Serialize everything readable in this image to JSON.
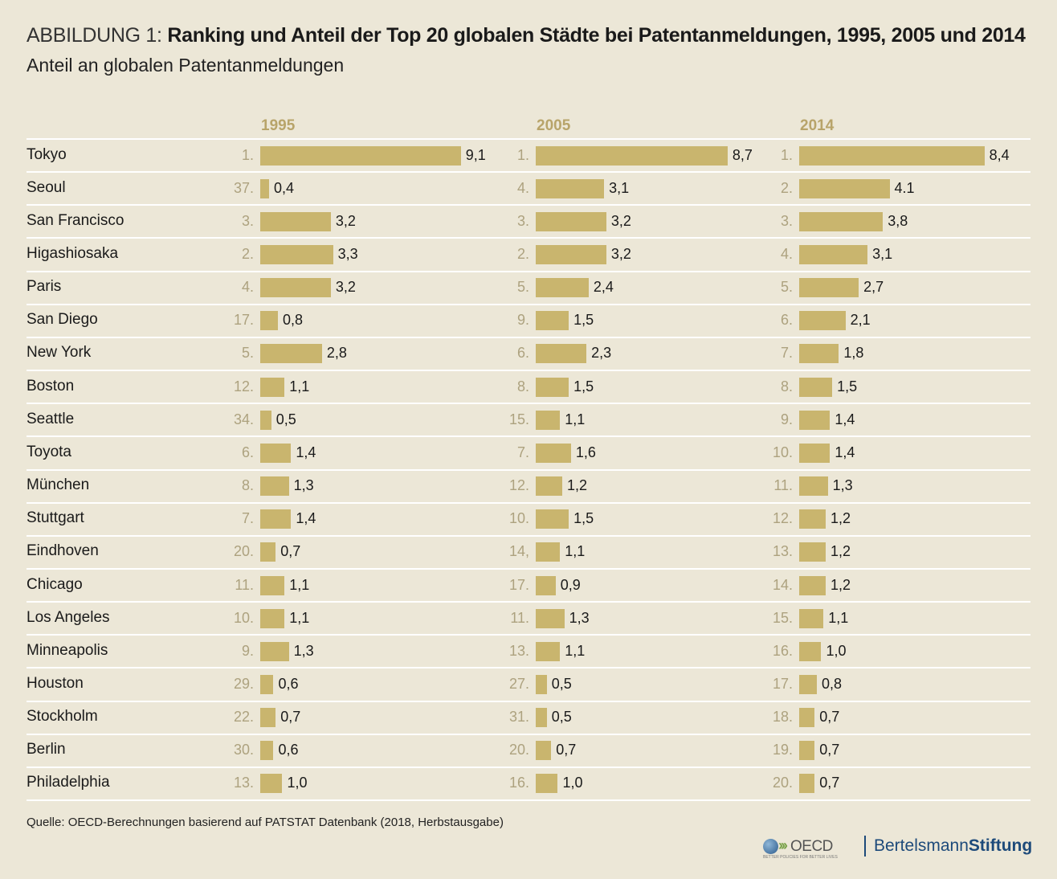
{
  "title_prefix": "ABBILDUNG 1:",
  "title": "Ranking und Anteil der Top 20 globalen Städte bei Patentanmeldungen, 1995, 2005 und 2014",
  "subtitle": "Anteil an globalen Patentanmeldungen",
  "source": "Quelle: OECD-Berechnungen basierend auf PATSTAT Datenbank (2018, Herbstausgabe)",
  "logos": {
    "oecd": "OECD",
    "oecd_tagline": "BETTER POLICIES FOR BETTER LIVES",
    "bertelsmann_a": "Bertelsmann",
    "bertelsmann_b": "Stiftung"
  },
  "colors": {
    "background": "#ece7d7",
    "bar": "#c9b56e",
    "year_header": "#b8a46a",
    "rank": "#ada27f"
  },
  "chart_data": {
    "type": "bar",
    "orientation": "horizontal",
    "categories": [
      "Tokyo",
      "Seoul",
      "San Francisco",
      "Higashiosaka",
      "Paris",
      "San Diego",
      "New York",
      "Boston",
      "Seattle",
      "Toyota",
      "München",
      "Stuttgart",
      "Eindhoven",
      "Chicago",
      "Los Angeles",
      "Minneapolis",
      "Houston",
      "Stockholm",
      "Berlin",
      "Philadelphia"
    ],
    "series": [
      {
        "name": "1995",
        "ranks": [
          "1.",
          "37.",
          "3.",
          "2.",
          "4.",
          "17.",
          "5.",
          "12.",
          "34.",
          "6.",
          "8.",
          "7.",
          "20.",
          "11.",
          "10.",
          "9.",
          "29.",
          "22.",
          "30.",
          "13."
        ],
        "values": [
          9.1,
          0.4,
          3.2,
          3.3,
          3.2,
          0.8,
          2.8,
          1.1,
          0.5,
          1.4,
          1.3,
          1.4,
          0.7,
          1.1,
          1.1,
          1.3,
          0.6,
          0.7,
          0.6,
          1.0
        ],
        "labels": [
          "9,1",
          "0,4",
          "3,2",
          "3,3",
          "3,2",
          "0,8",
          "2,8",
          "1,1",
          "0,5",
          "1,4",
          "1,3",
          "1,4",
          "0,7",
          "1,1",
          "1,1",
          "1,3",
          "0,6",
          "0,7",
          "0,6",
          "1,0"
        ]
      },
      {
        "name": "2005",
        "ranks": [
          "1.",
          "4.",
          "3.",
          "2.",
          "5.",
          "9.",
          "6.",
          "8.",
          "15.",
          "7.",
          "12.",
          "10.",
          "14,",
          "17.",
          "11.",
          "13.",
          "27.",
          "31.",
          "20.",
          "16."
        ],
        "values": [
          8.7,
          3.1,
          3.2,
          3.2,
          2.4,
          1.5,
          2.3,
          1.5,
          1.1,
          1.6,
          1.2,
          1.5,
          1.1,
          0.9,
          1.3,
          1.1,
          0.5,
          0.5,
          0.7,
          1.0
        ],
        "labels": [
          "8,7",
          "3,1",
          "3,2",
          "3,2",
          "2,4",
          "1,5",
          "2,3",
          "1,5",
          "1,1",
          "1,6",
          "1,2",
          "1,5",
          "1,1",
          "0,9",
          "1,3",
          "1,1",
          "0,5",
          "0,5",
          "0,7",
          "1,0"
        ]
      },
      {
        "name": "2014",
        "ranks": [
          "1.",
          "2.",
          "3.",
          "4.",
          "5.",
          "6.",
          "7.",
          "8.",
          "9.",
          "10.",
          "11.",
          "12.",
          "13.",
          "14.",
          "15.",
          "16.",
          "17.",
          "18.",
          "19.",
          "20."
        ],
        "values": [
          8.4,
          4.1,
          3.8,
          3.1,
          2.7,
          2.1,
          1.8,
          1.5,
          1.4,
          1.4,
          1.3,
          1.2,
          1.2,
          1.2,
          1.1,
          1.0,
          0.8,
          0.7,
          0.7,
          0.7
        ],
        "labels": [
          "8,4",
          "4.1",
          "3,8",
          "3,1",
          "2,7",
          "2,1",
          "1,8",
          "1,5",
          "1,4",
          "1,4",
          "1,3",
          "1,2",
          "1,2",
          "1,2",
          "1,1",
          "1,0",
          "0,8",
          "0,7",
          "0,7",
          "0,7"
        ]
      }
    ],
    "unit": "%",
    "grid": false,
    "legend": "none"
  }
}
